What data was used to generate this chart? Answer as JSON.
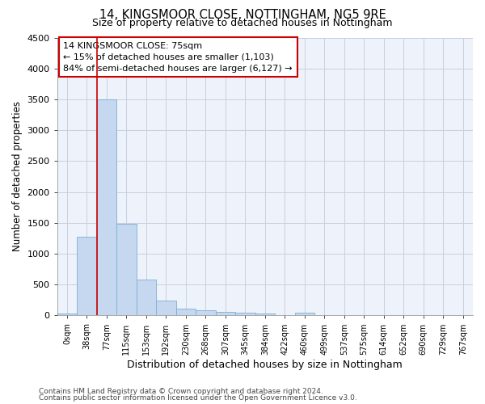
{
  "title1": "14, KINGSMOOR CLOSE, NOTTINGHAM, NG5 9RE",
  "title2": "Size of property relative to detached houses in Nottingham",
  "xlabel": "Distribution of detached houses by size in Nottingham",
  "ylabel": "Number of detached properties",
  "bin_labels": [
    "0sqm",
    "38sqm",
    "77sqm",
    "115sqm",
    "153sqm",
    "192sqm",
    "230sqm",
    "268sqm",
    "307sqm",
    "345sqm",
    "384sqm",
    "422sqm",
    "460sqm",
    "499sqm",
    "537sqm",
    "575sqm",
    "614sqm",
    "652sqm",
    "690sqm",
    "729sqm",
    "767sqm"
  ],
  "bar_values": [
    30,
    1270,
    3500,
    1480,
    580,
    240,
    115,
    80,
    55,
    40,
    35,
    0,
    40,
    0,
    0,
    0,
    0,
    0,
    0,
    0,
    0
  ],
  "bar_color": "#c5d8f0",
  "bar_edge_color": "#7bafd4",
  "grid_color": "#c8cfe0",
  "annotation_text": "14 KINGSMOOR CLOSE: 75sqm\n← 15% of detached houses are smaller (1,103)\n84% of semi-detached houses are larger (6,127) →",
  "annotation_box_color": "#cc0000",
  "red_line_x": 2.0,
  "ylim": [
    0,
    4500
  ],
  "yticks": [
    0,
    500,
    1000,
    1500,
    2000,
    2500,
    3000,
    3500,
    4000,
    4500
  ],
  "footnote1": "Contains HM Land Registry data © Crown copyright and database right 2024.",
  "footnote2": "Contains public sector information licensed under the Open Government Licence v3.0.",
  "bg_color": "#eef2fa"
}
